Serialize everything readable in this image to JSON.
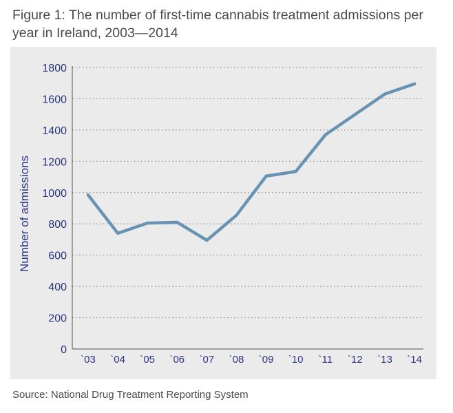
{
  "figure": {
    "title": "Figure 1: The number of first-time cannabis treatment admissions per year in Ireland, 2003—2014",
    "source": "Source: National Drug Treatment Reporting System"
  },
  "chart_data": {
    "type": "line",
    "title": "Figure 1: The number of first-time cannabis treatment admissions per year in Ireland, 2003—2014",
    "xlabel": "",
    "ylabel": "Number of admissions",
    "categories": [
      "`03",
      "`04",
      "`05",
      "`06",
      "`07",
      "`08",
      "`09",
      "`10",
      "`11",
      "`12",
      "`13",
      "`14"
    ],
    "series": [
      {
        "values": [
          985,
          740,
          805,
          810,
          695,
          855,
          1105,
          1135,
          1370,
          1500,
          1630,
          1695
        ]
      }
    ],
    "ylim": [
      0,
      1800
    ],
    "yticks": [
      0,
      200,
      400,
      600,
      800,
      1000,
      1200,
      1400,
      1600,
      1800
    ],
    "grid": "horizontal dotted",
    "legend": "none",
    "colors": {
      "line": "#6993b2",
      "axis_text": "#2b3383",
      "grid": "#8a8a8a",
      "panel_background": "#ebebeb"
    }
  }
}
